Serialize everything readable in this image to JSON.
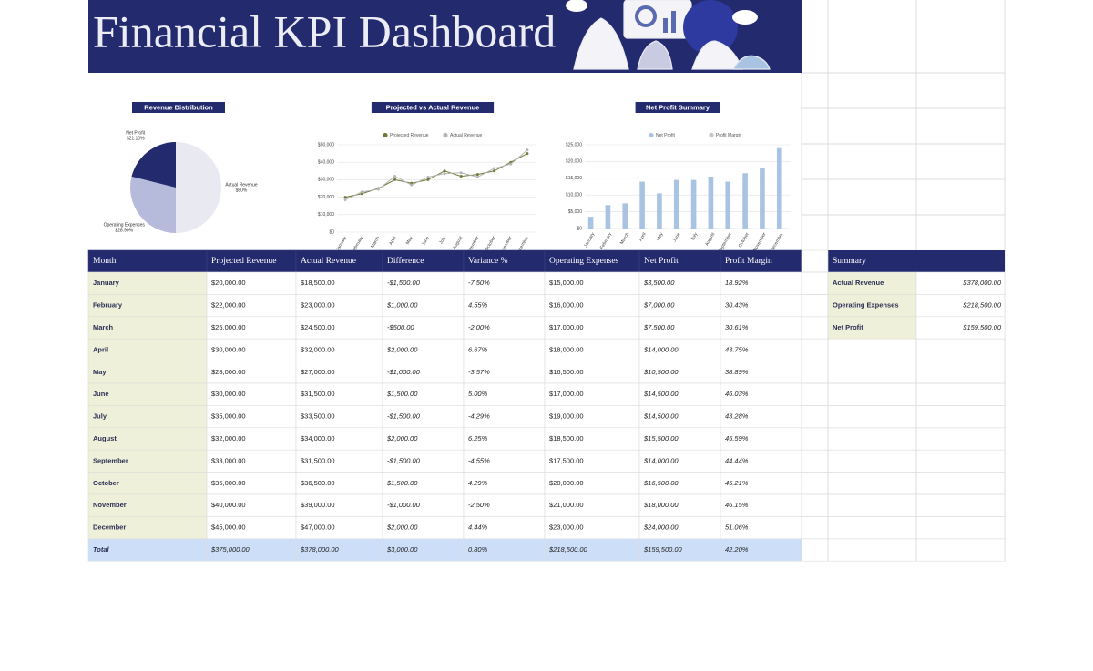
{
  "header": {
    "title": "Financial KPI Dashboard"
  },
  "chart_data": [
    {
      "type": "pie",
      "title": "Revenue Distribution",
      "categories": [
        "Actual Revenue",
        "Operating Expenses",
        "Net Profit"
      ],
      "values": [
        50,
        28.9,
        21.1
      ],
      "value_labels": [
        "$50%",
        "$28.90%",
        "$21.10%"
      ],
      "colors": [
        "#e8e9f1",
        "#b6bbdb",
        "#232a6e"
      ]
    },
    {
      "type": "line",
      "title": "Projected vs Actual Revenue",
      "categories": [
        "January",
        "February",
        "March",
        "April",
        "May",
        "June",
        "July",
        "August",
        "September",
        "October",
        "November",
        "December"
      ],
      "series": [
        {
          "name": "Projected Revenue",
          "color": "#6b7b3a",
          "values": [
            20000,
            22000,
            25000,
            30000,
            28000,
            30000,
            35000,
            32000,
            33000,
            35000,
            40000,
            45000
          ]
        },
        {
          "name": "Actual Revenue",
          "color": "#b5b5b5",
          "values": [
            18500,
            23000,
            24500,
            32000,
            27000,
            31500,
            33500,
            34000,
            31500,
            36500,
            39000,
            47000
          ]
        }
      ],
      "ylim": [
        0,
        50000
      ],
      "yticks": [
        {
          "value": 0,
          "label": "$0"
        },
        {
          "value": 10000,
          "label": "$10,000"
        },
        {
          "value": 20000,
          "label": "$20,000"
        },
        {
          "value": 30000,
          "label": "$30,000"
        },
        {
          "value": 40000,
          "label": "$40,000"
        },
        {
          "value": 50000,
          "label": "$50,000"
        }
      ],
      "grid": true
    },
    {
      "type": "bar",
      "title": "Net Profit Summary",
      "categories": [
        "January",
        "February",
        "March",
        "April",
        "May",
        "June",
        "July",
        "August",
        "September",
        "October",
        "November",
        "December"
      ],
      "series": [
        {
          "name": "Net Profit",
          "color": "#a9c4e2",
          "values": [
            3500,
            7000,
            7500,
            14000,
            10500,
            14500,
            14500,
            15500,
            14000,
            16500,
            18000,
            24000
          ]
        },
        {
          "name": "Profit Margin",
          "color": "#c4c4c4",
          "values": [
            18.92,
            30.43,
            30.61,
            43.75,
            38.89,
            46.03,
            43.28,
            45.59,
            44.44,
            45.21,
            46.15,
            51.06
          ]
        }
      ],
      "ylim": [
        0,
        25000
      ],
      "yticks": [
        {
          "value": 0,
          "label": "$0"
        },
        {
          "value": 5000,
          "label": "$5,000"
        },
        {
          "value": 10000,
          "label": "$10,000"
        },
        {
          "value": 15000,
          "label": "$15,000"
        },
        {
          "value": 20000,
          "label": "$20,000"
        },
        {
          "value": 25000,
          "label": "$25,000"
        }
      ],
      "grid": true
    }
  ],
  "table": {
    "columns": [
      "Month",
      "Projected Revenue",
      "Actual Revenue",
      "Difference",
      "Variance %",
      "Operating Expenses",
      "Net Profit",
      "Profit Margin"
    ],
    "rows": [
      [
        "January",
        "$20,000.00",
        "$18,500.00",
        "-$1,500.00",
        "-7.50%",
        "$15,000.00",
        "$3,500.00",
        "18.92%"
      ],
      [
        "February",
        "$22,000.00",
        "$23,000.00",
        "$1,000.00",
        "4.55%",
        "$16,000.00",
        "$7,000.00",
        "30.43%"
      ],
      [
        "March",
        "$25,000.00",
        "$24,500.00",
        "-$500.00",
        "-2.00%",
        "$17,000.00",
        "$7,500.00",
        "30.61%"
      ],
      [
        "April",
        "$30,000.00",
        "$32,000.00",
        "$2,000.00",
        "6.67%",
        "$18,000.00",
        "$14,000.00",
        "43.75%"
      ],
      [
        "May",
        "$28,000.00",
        "$27,000.00",
        "-$1,000.00",
        "-3.57%",
        "$16,500.00",
        "$10,500.00",
        "38.89%"
      ],
      [
        "June",
        "$30,000.00",
        "$31,500.00",
        "$1,500.00",
        "5.00%",
        "$17,000.00",
        "$14,500.00",
        "46.03%"
      ],
      [
        "July",
        "$35,000.00",
        "$33,500.00",
        "-$1,500.00",
        "-4.29%",
        "$19,000.00",
        "$14,500.00",
        "43.28%"
      ],
      [
        "August",
        "$32,000.00",
        "$34,000.00",
        "$2,000.00",
        "6.25%",
        "$18,500.00",
        "$15,500.00",
        "45.59%"
      ],
      [
        "September",
        "$33,000.00",
        "$31,500.00",
        "-$1,500.00",
        "-4.55%",
        "$17,500.00",
        "$14,000.00",
        "44.44%"
      ],
      [
        "October",
        "$35,000.00",
        "$36,500.00",
        "$1,500.00",
        "4.29%",
        "$20,000.00",
        "$16,500.00",
        "45.21%"
      ],
      [
        "November",
        "$40,000.00",
        "$39,000.00",
        "-$1,000.00",
        "-2.50%",
        "$21,000.00",
        "$18,000.00",
        "46.15%"
      ],
      [
        "December",
        "$45,000.00",
        "$47,000.00",
        "$2,000.00",
        "4.44%",
        "$23,000.00",
        "$24,000.00",
        "51.06%"
      ],
      [
        "Total",
        "$375,000.00",
        "$378,000.00",
        "$3,000.00",
        "0.80%",
        "$218,500.00",
        "$159,500.00",
        "42.20%"
      ]
    ]
  },
  "summary": {
    "title": "Summary",
    "rows": [
      [
        "Actual Revenue",
        "$378,000.00"
      ],
      [
        "Operating Expenses",
        "$218,500.00"
      ],
      [
        "Net Profit",
        "$159,500.00"
      ]
    ]
  }
}
